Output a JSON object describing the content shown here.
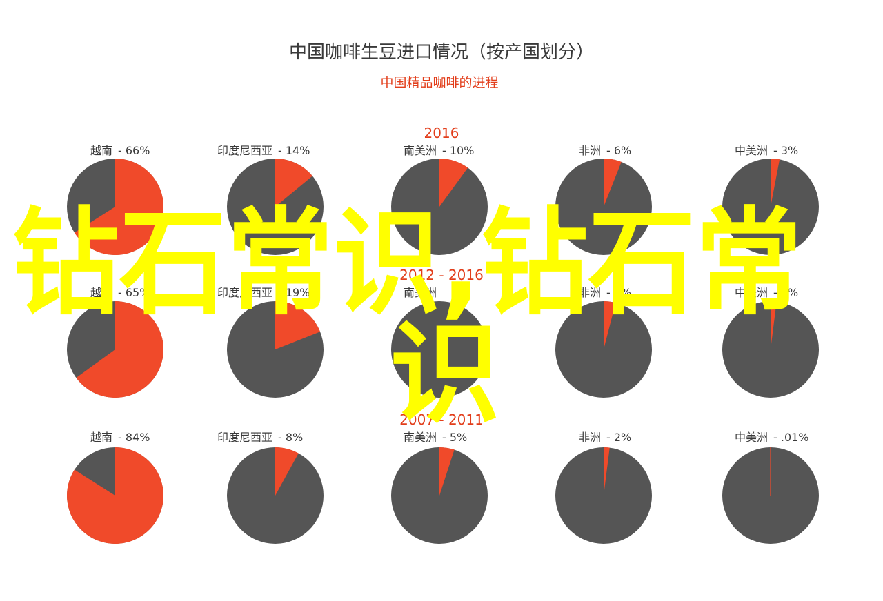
{
  "chart_data": {
    "type": "pie",
    "title": "中国咖啡生豆进口情况（按产国划分）",
    "subtitle": "中国精品咖啡的进程",
    "colors": {
      "share": "#f04a2a",
      "rest": "#555555",
      "title": "#3a3a3a",
      "subtitle": "#e23d1a",
      "panel_title": "#e23d1a",
      "label": "#3a3a3a"
    },
    "panels": [
      {
        "title": "2016",
        "pies": [
          {
            "region": "越南",
            "value_label": "- 66%",
            "value": 66
          },
          {
            "region": "印度尼西亚",
            "value_label": "- 14%",
            "value": 14
          },
          {
            "region": "南美洲",
            "value_label": "- 10%",
            "value": 10
          },
          {
            "region": "非洲",
            "value_label": "- 6%",
            "value": 6
          },
          {
            "region": "中美洲",
            "value_label": "- 3%",
            "value": 3
          }
        ]
      },
      {
        "title": "2012 - 2016",
        "pies": [
          {
            "region": "越南",
            "value_label": "- 65%",
            "value": 65
          },
          {
            "region": "印度尼西亚",
            "value_label": "- 19%",
            "value": 19
          },
          {
            "region": "南美洲",
            "value_label": "",
            "value": 0
          },
          {
            "region": "非洲",
            "value_label": "- 4%",
            "value": 4
          },
          {
            "region": "中美洲",
            "value_label": "- 2%",
            "value": 2
          }
        ]
      },
      {
        "title": "2007 - 2011",
        "pies": [
          {
            "region": "越南",
            "value_label": "- 84%",
            "value": 84
          },
          {
            "region": "印度尼西亚",
            "value_label": "- 8%",
            "value": 8
          },
          {
            "region": "南美洲",
            "value_label": "- 5%",
            "value": 5
          },
          {
            "region": "非洲",
            "value_label": "- 2%",
            "value": 2
          },
          {
            "region": "中美洲",
            "value_label": "- .01%",
            "value": 0.01
          }
        ]
      }
    ]
  },
  "watermark": {
    "line1": "钻石常识,钻石常",
    "line2": "识",
    "color": "#ffff00"
  }
}
